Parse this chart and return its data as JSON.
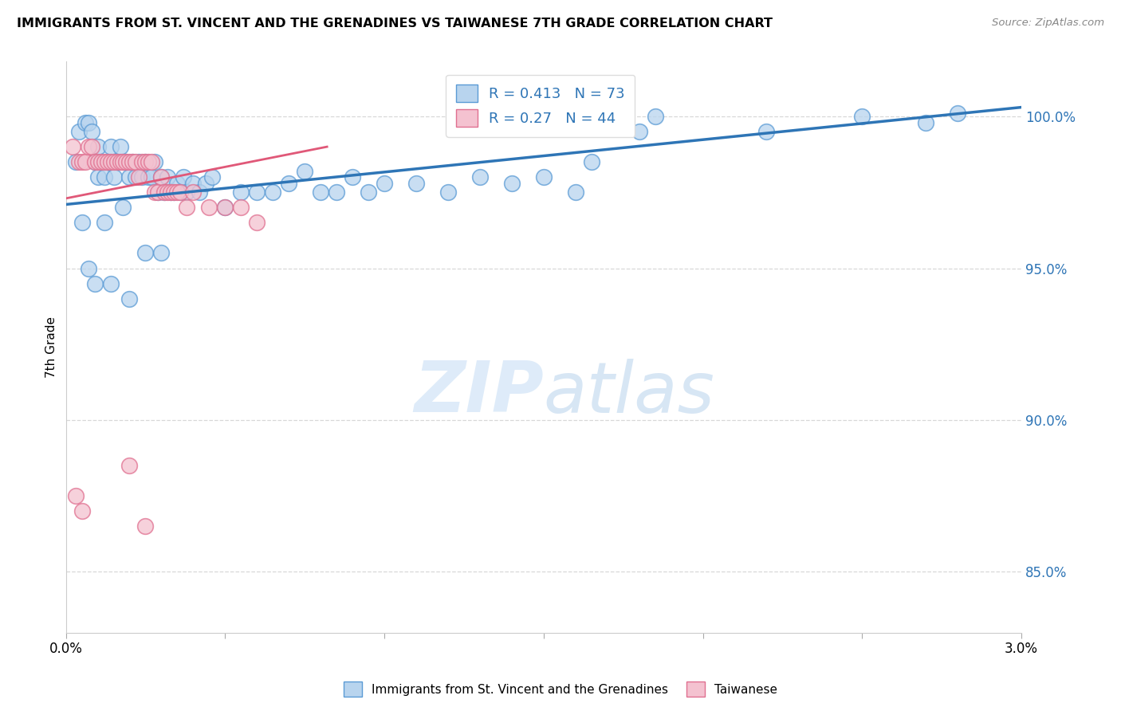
{
  "title": "IMMIGRANTS FROM ST. VINCENT AND THE GRENADINES VS TAIWANESE 7TH GRADE CORRELATION CHART",
  "source": "Source: ZipAtlas.com",
  "ylabel": "7th Grade",
  "x_min": 0.0,
  "x_max": 3.0,
  "y_min": 83.0,
  "y_max": 101.8,
  "blue_R": 0.413,
  "blue_N": 73,
  "pink_R": 0.27,
  "pink_N": 44,
  "blue_color": "#b8d4ee",
  "blue_edge_color": "#5b9bd5",
  "pink_color": "#f4c2d0",
  "pink_edge_color": "#e07090",
  "blue_line_color": "#2e75b6",
  "pink_line_color": "#e05878",
  "watermark_color": "#ddeeff",
  "grid_color": "#d8d8d8",
  "blue_line_x0": 0.0,
  "blue_line_y0": 97.1,
  "blue_line_x1": 3.0,
  "blue_line_y1": 100.3,
  "pink_line_x0": 0.0,
  "pink_line_y0": 97.3,
  "pink_line_x1": 0.82,
  "pink_line_y1": 99.0,
  "blue_x": [
    0.03,
    0.04,
    0.06,
    0.07,
    0.08,
    0.09,
    0.1,
    0.1,
    0.11,
    0.12,
    0.13,
    0.14,
    0.15,
    0.16,
    0.17,
    0.18,
    0.19,
    0.2,
    0.21,
    0.22,
    0.23,
    0.24,
    0.25,
    0.26,
    0.27,
    0.28,
    0.29,
    0.3,
    0.31,
    0.32,
    0.33,
    0.34,
    0.35,
    0.36,
    0.37,
    0.38,
    0.4,
    0.42,
    0.44,
    0.46,
    0.5,
    0.55,
    0.6,
    0.65,
    0.7,
    0.75,
    0.8,
    0.85,
    0.9,
    0.95,
    1.0,
    1.1,
    1.2,
    1.3,
    1.4,
    1.5,
    1.6,
    1.65,
    1.8,
    1.85,
    2.2,
    2.5,
    2.7,
    2.8,
    0.05,
    0.12,
    0.18,
    0.25,
    0.3,
    0.07,
    0.09,
    0.14,
    0.2
  ],
  "blue_y": [
    98.5,
    99.5,
    99.8,
    99.8,
    99.5,
    98.5,
    99.0,
    98.0,
    98.5,
    98.0,
    98.5,
    99.0,
    98.0,
    98.5,
    99.0,
    98.5,
    98.5,
    98.0,
    98.5,
    98.0,
    98.5,
    98.0,
    98.5,
    98.0,
    98.0,
    98.5,
    97.5,
    98.0,
    97.5,
    98.0,
    97.5,
    97.5,
    97.8,
    97.5,
    98.0,
    97.5,
    97.8,
    97.5,
    97.8,
    98.0,
    97.0,
    97.5,
    97.5,
    97.5,
    97.8,
    98.2,
    97.5,
    97.5,
    98.0,
    97.5,
    97.8,
    97.8,
    97.5,
    98.0,
    97.8,
    98.0,
    97.5,
    98.5,
    99.5,
    100.0,
    99.5,
    100.0,
    99.8,
    100.1,
    96.5,
    96.5,
    97.0,
    95.5,
    95.5,
    95.0,
    94.5,
    94.5,
    94.0
  ],
  "pink_x": [
    0.02,
    0.04,
    0.05,
    0.06,
    0.07,
    0.08,
    0.09,
    0.1,
    0.11,
    0.12,
    0.13,
    0.14,
    0.15,
    0.16,
    0.17,
    0.18,
    0.19,
    0.2,
    0.21,
    0.22,
    0.23,
    0.24,
    0.25,
    0.26,
    0.27,
    0.28,
    0.29,
    0.3,
    0.31,
    0.32,
    0.33,
    0.34,
    0.35,
    0.36,
    0.38,
    0.4,
    0.45,
    0.5,
    0.55,
    0.6,
    0.03,
    0.05,
    0.2,
    0.25
  ],
  "pink_y": [
    99.0,
    98.5,
    98.5,
    98.5,
    99.0,
    99.0,
    98.5,
    98.5,
    98.5,
    98.5,
    98.5,
    98.5,
    98.5,
    98.5,
    98.5,
    98.5,
    98.5,
    98.5,
    98.5,
    98.5,
    98.0,
    98.5,
    98.5,
    98.5,
    98.5,
    97.5,
    97.5,
    98.0,
    97.5,
    97.5,
    97.5,
    97.5,
    97.5,
    97.5,
    97.0,
    97.5,
    97.0,
    97.0,
    97.0,
    96.5,
    87.5,
    87.0,
    88.5,
    86.5
  ]
}
